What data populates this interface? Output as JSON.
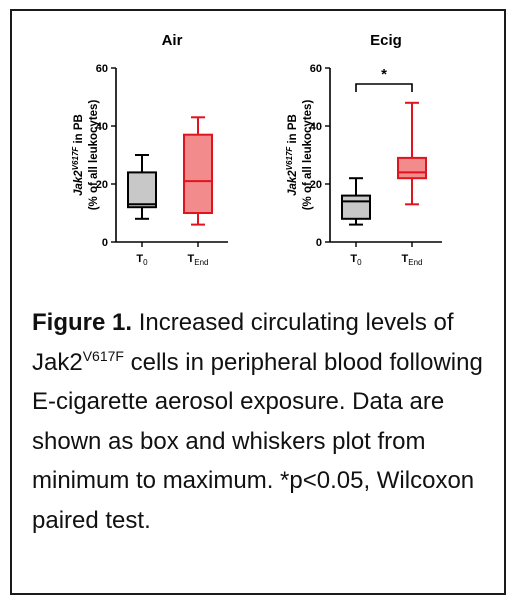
{
  "chart_data": [
    {
      "type": "box",
      "title": "Air",
      "ylabel_line1_prefix": "Jak2",
      "ylabel_line1_sup": "V617F",
      "ylabel_line1_suffix": " in PB",
      "ylabel_line2": "(% of all leukocytes)",
      "ylim": [
        0,
        60
      ],
      "yticks": [
        "0",
        "20",
        "40",
        "60"
      ],
      "categories": [
        {
          "base": "T",
          "sub": "0"
        },
        {
          "base": "T",
          "sub": "End"
        }
      ],
      "boxes": [
        {
          "min": 8,
          "q1": 12,
          "median": 13,
          "q3": 24,
          "max": 30,
          "fill": "#c8c8c8",
          "stroke": "#000000"
        },
        {
          "min": 6,
          "q1": 10,
          "median": 21,
          "q3": 37,
          "max": 43,
          "fill": "#f28b8b",
          "stroke": "#e0141e"
        }
      ],
      "significance": null
    },
    {
      "type": "box",
      "title": "Ecig",
      "ylabel_line1_prefix": "Jak2",
      "ylabel_line1_sup": "V617F",
      "ylabel_line1_suffix": " in PB",
      "ylabel_line2": "(% of all leukocytes)",
      "ylim": [
        0,
        60
      ],
      "yticks": [
        "0",
        "20",
        "40",
        "60"
      ],
      "categories": [
        {
          "base": "T",
          "sub": "0"
        },
        {
          "base": "T",
          "sub": "End"
        }
      ],
      "boxes": [
        {
          "min": 6,
          "q1": 8,
          "median": 14,
          "q3": 16,
          "max": 22,
          "fill": "#c8c8c8",
          "stroke": "#000000"
        },
        {
          "min": 13,
          "q1": 22,
          "median": 24,
          "q3": 29,
          "max": 48,
          "fill": "#f28b8b",
          "stroke": "#e0141e"
        }
      ],
      "significance": {
        "label": "*",
        "between": [
          0,
          1
        ]
      }
    }
  ],
  "caption": {
    "lead": "Figure 1.",
    "text_before_sup": " Increased circulating levels of Jak2",
    "sup": "V617F",
    "text_after_sup": " cells in peripheral blood following E-cigarette aerosol exposure. Data are shown as box and whiskers plot from minimum to maximum. *p<0.05, Wilcoxon paired test."
  }
}
